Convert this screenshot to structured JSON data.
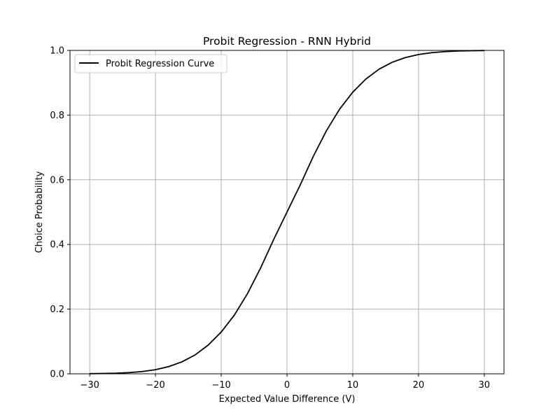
{
  "chart_data": {
    "type": "line",
    "title": "Probit Regression - RNN Hybrid",
    "xlabel": "Expected Value Difference (V)",
    "ylabel": "Choice Probability",
    "xlim": [
      -33,
      33
    ],
    "ylim": [
      0,
      1
    ],
    "x_ticks": [
      -30,
      -20,
      -10,
      0,
      10,
      20,
      30
    ],
    "x_tick_labels": [
      "−30",
      "−20",
      "−10",
      "0",
      "10",
      "20",
      "30"
    ],
    "y_ticks": [
      0.0,
      0.2,
      0.4,
      0.6,
      0.8,
      1.0
    ],
    "y_tick_labels": [
      "0.0",
      "0.2",
      "0.4",
      "0.6",
      "0.8",
      "1.0"
    ],
    "grid": true,
    "legend_position": "upper-left",
    "series": [
      {
        "name": "Probit Regression Curve",
        "color": "#000000",
        "x": [
          -30,
          -28,
          -26,
          -24,
          -22,
          -20,
          -18,
          -16,
          -14,
          -12,
          -10,
          -8,
          -6,
          -4,
          -2,
          0,
          2,
          4,
          6,
          8,
          10,
          12,
          14,
          16,
          18,
          20,
          22,
          24,
          26,
          28,
          30
        ],
        "y": [
          0.0004,
          0.0009,
          0.0019,
          0.0038,
          0.0071,
          0.0128,
          0.0222,
          0.0367,
          0.0581,
          0.0885,
          0.1292,
          0.1817,
          0.2483,
          0.3277,
          0.4164,
          0.5,
          0.5836,
          0.6723,
          0.7517,
          0.8183,
          0.8708,
          0.9115,
          0.9419,
          0.9633,
          0.9778,
          0.9872,
          0.9929,
          0.9962,
          0.9981,
          0.9991,
          0.9996
        ]
      }
    ]
  }
}
